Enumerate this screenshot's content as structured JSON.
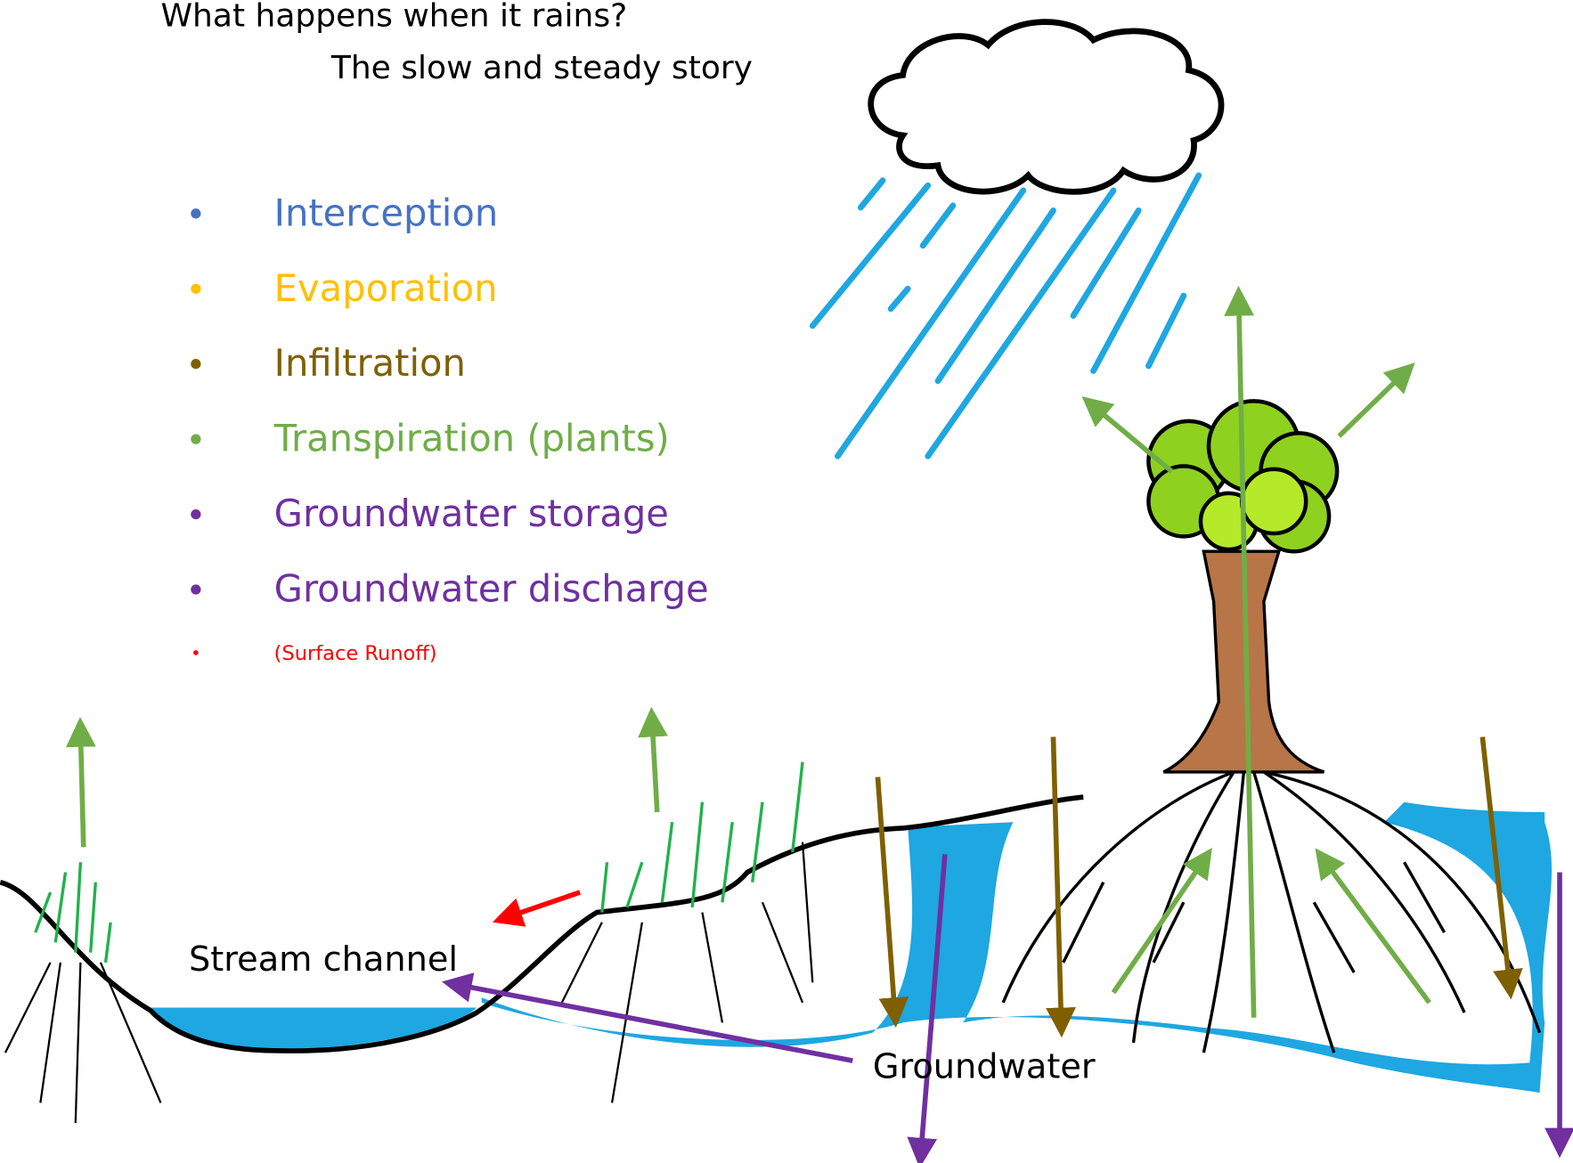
{
  "header": {
    "title": "What happens when it rains?",
    "subtitle": "The slow and steady story"
  },
  "legend": {
    "items": [
      {
        "text": "Interception",
        "color": "#4472c4"
      },
      {
        "text": "Evaporation",
        "color": "#ffc000"
      },
      {
        "text": "Infiltration",
        "color": "#7f6000"
      },
      {
        "text": "Transpiration (plants)",
        "color": "#70ad47"
      },
      {
        "text": "Groundwater storage",
        "color": "#7030a0"
      },
      {
        "text": "Groundwater discharge",
        "color": "#7030a0"
      },
      {
        "text": "(Surface Runoff)",
        "color": "#ff0000"
      }
    ]
  },
  "labels": {
    "stream": "Stream channel",
    "groundwater": "Groundwater"
  }
}
